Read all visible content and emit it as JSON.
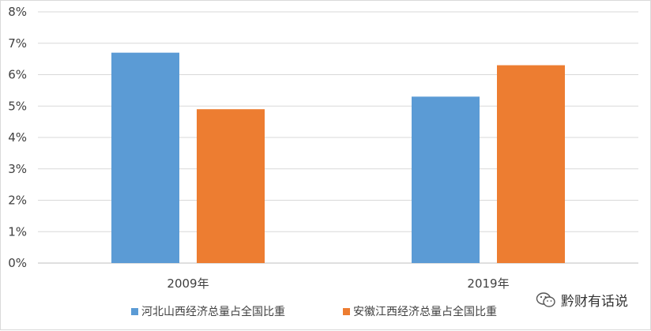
{
  "chart_data": {
    "type": "bar",
    "categories": [
      "2009年",
      "2019年"
    ],
    "series": [
      {
        "name": "河北山西经济总量占全国比重",
        "values": [
          6.7,
          5.3
        ],
        "color": "#5b9bd5"
      },
      {
        "name": "安徽江西经济总量占全国比重",
        "values": [
          4.9,
          6.3
        ],
        "color": "#ed7d31"
      }
    ],
    "ylim": [
      0,
      8
    ],
    "yticks": [
      "0%",
      "1%",
      "2%",
      "3%",
      "4%",
      "5%",
      "6%",
      "7%",
      "8%"
    ],
    "grid": true,
    "legend": "bottom",
    "title": "",
    "xlabel": "",
    "ylabel": ""
  },
  "watermark": {
    "text": "黔财有话说",
    "icon": "wechat-icon"
  }
}
